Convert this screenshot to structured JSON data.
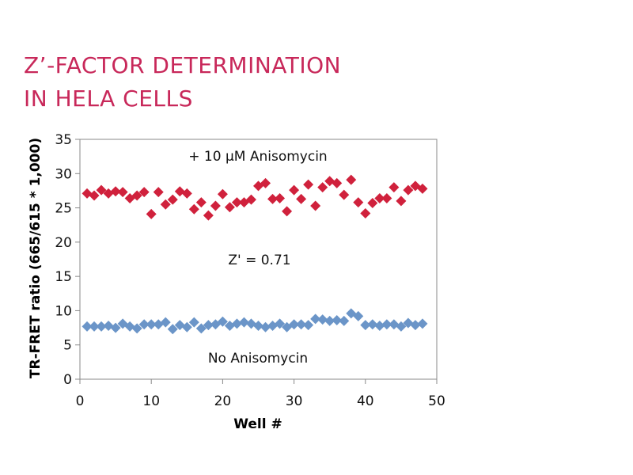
{
  "title_lines": [
    "Z’-FACTOR DETERMINATION",
    "IN HELA CELLS"
  ],
  "colors": {
    "title": "#c8285a",
    "series_treated": "#d0213c",
    "series_control": "#6b95c8"
  },
  "chart_data": {
    "type": "scatter",
    "title": "Z’-FACTOR DETERMINATION IN HELA CELLS",
    "xlabel": "Well #",
    "ylabel": "TR-FRET ratio  (665/615 * 1,000)",
    "xlim": [
      0,
      50
    ],
    "ylim": [
      0,
      35
    ],
    "xticks": [
      0,
      10,
      20,
      30,
      40,
      50
    ],
    "yticks": [
      0,
      5,
      10,
      15,
      20,
      25,
      30,
      35
    ],
    "marker": "diamond",
    "grid": false,
    "annotations": [
      "+ 10 µM Anisomycin",
      "Z' = 0.71",
      "No Anisomycin"
    ],
    "series": [
      {
        "x": [
          1,
          2,
          3,
          4,
          5,
          6,
          7,
          8,
          9,
          10,
          11,
          12,
          13,
          14,
          15,
          16,
          17,
          18,
          19,
          20,
          21,
          22,
          23,
          24,
          25,
          26,
          27,
          28,
          29,
          30,
          31,
          32,
          33,
          34,
          35,
          36,
          37,
          38,
          39,
          40,
          41,
          42,
          43,
          44,
          45,
          46,
          47,
          48
        ],
        "y": [
          27.1,
          26.8,
          27.6,
          27.1,
          27.4,
          27.3,
          26.4,
          26.8,
          27.3,
          24.1,
          27.3,
          25.5,
          26.2,
          27.4,
          27.1,
          24.8,
          25.8,
          23.9,
          25.3,
          27.0,
          25.1,
          25.8,
          25.8,
          26.2,
          28.2,
          28.6,
          26.3,
          26.4,
          24.5,
          27.6,
          26.3,
          28.4,
          25.3,
          28.0,
          28.9,
          28.6,
          26.9,
          29.1,
          25.8,
          24.2,
          25.7,
          26.4,
          26.4,
          28.0,
          26.0,
          27.6,
          28.2,
          27.8
        ]
      },
      {
        "x": [
          1,
          2,
          3,
          4,
          5,
          6,
          7,
          8,
          9,
          10,
          11,
          12,
          13,
          14,
          15,
          16,
          17,
          18,
          19,
          20,
          21,
          22,
          23,
          24,
          25,
          26,
          27,
          28,
          29,
          30,
          31,
          32,
          33,
          34,
          35,
          36,
          37,
          38,
          39,
          40,
          41,
          42,
          43,
          44,
          45,
          46,
          47,
          48
        ],
        "y": [
          7.7,
          7.7,
          7.7,
          7.8,
          7.5,
          8.1,
          7.7,
          7.4,
          8.0,
          8.0,
          8.0,
          8.3,
          7.3,
          7.9,
          7.6,
          8.3,
          7.4,
          7.9,
          8.0,
          8.4,
          7.8,
          8.1,
          8.3,
          8.1,
          7.8,
          7.6,
          7.8,
          8.1,
          7.6,
          8.0,
          8.0,
          7.9,
          8.8,
          8.7,
          8.5,
          8.6,
          8.5,
          9.6,
          9.2,
          7.9,
          8.0,
          7.8,
          8.0,
          8.0,
          7.7,
          8.2,
          7.9,
          8.1
        ]
      }
    ]
  }
}
